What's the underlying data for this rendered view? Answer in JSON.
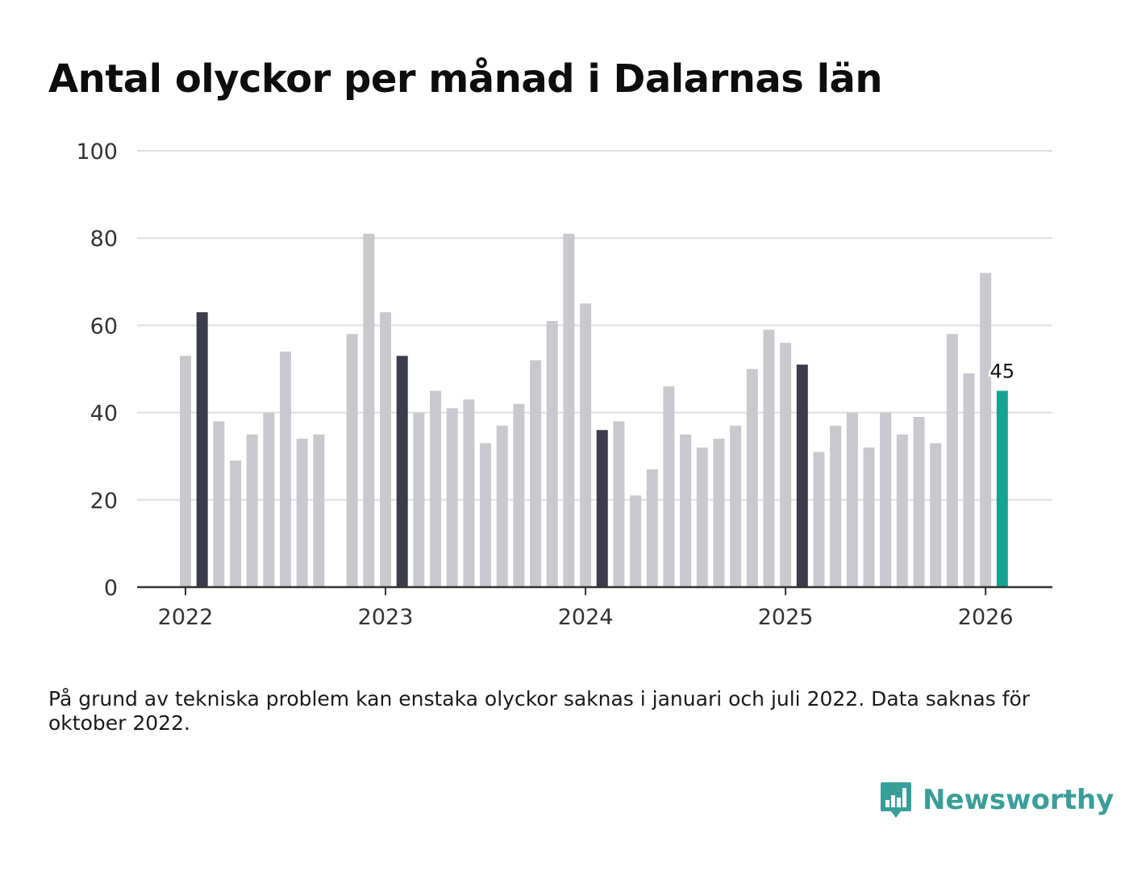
{
  "title": "Antal olyckor per månad i Dalarnas län",
  "footnote": "På grund av tekniska problem kan enstaka olyckor saknas i januari och juli 2022. Data saknas för oktober 2022.",
  "brand": {
    "name": "Newsworthy"
  },
  "colors": {
    "bar": "#c9c8cf",
    "highlight": "#3d3c4a",
    "latest": "#16a393",
    "grid": "#dedede",
    "axis": "#333333",
    "brand": "#3a9e98"
  },
  "chart_data": {
    "type": "bar",
    "title": "Antal olyckor per månad i Dalarnas län",
    "xlabel": "",
    "ylabel": "",
    "ylim": [
      0,
      100
    ],
    "yticks": [
      0,
      20,
      40,
      60,
      80,
      100
    ],
    "grid": true,
    "x_tick_labels": [
      {
        "label": "2022",
        "month_index": 0
      },
      {
        "label": "2023",
        "month_index": 12
      },
      {
        "label": "2024",
        "month_index": 24
      },
      {
        "label": "2025",
        "month_index": 36
      },
      {
        "label": "2026",
        "month_index": 48
      }
    ],
    "categories": [
      "2022-01",
      "2022-02",
      "2022-03",
      "2022-04",
      "2022-05",
      "2022-06",
      "2022-07",
      "2022-08",
      "2022-09",
      "2022-10",
      "2022-11",
      "2022-12",
      "2023-01",
      "2023-02",
      "2023-03",
      "2023-04",
      "2023-05",
      "2023-06",
      "2023-07",
      "2023-08",
      "2023-09",
      "2023-10",
      "2023-11",
      "2023-12",
      "2024-01",
      "2024-02",
      "2024-03",
      "2024-04",
      "2024-05",
      "2024-06",
      "2024-07",
      "2024-08",
      "2024-09",
      "2024-10",
      "2024-11",
      "2024-12",
      "2025-01",
      "2025-02",
      "2025-03",
      "2025-04",
      "2025-05",
      "2025-06",
      "2025-07",
      "2025-08",
      "2025-09",
      "2025-10",
      "2025-11",
      "2025-12",
      "2026-01",
      "2026-02"
    ],
    "values": [
      53,
      63,
      38,
      29,
      35,
      40,
      54,
      34,
      35,
      null,
      58,
      81,
      63,
      53,
      40,
      45,
      41,
      43,
      33,
      37,
      42,
      52,
      61,
      81,
      65,
      36,
      38,
      21,
      27,
      46,
      35,
      32,
      34,
      37,
      50,
      59,
      56,
      51,
      31,
      37,
      40,
      32,
      40,
      35,
      39,
      33,
      58,
      49,
      72,
      45
    ],
    "highlighted": [
      "2022-02",
      "2023-02",
      "2024-02",
      "2025-02"
    ],
    "latest": "2026-02",
    "annotations": [
      {
        "category": "2026-02",
        "text": "45"
      }
    ]
  }
}
